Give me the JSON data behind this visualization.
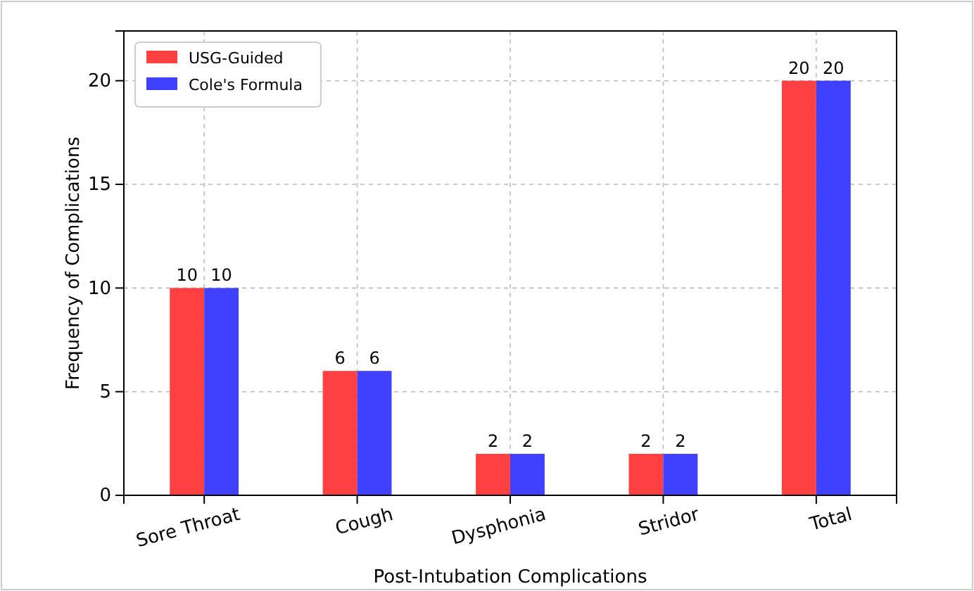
{
  "chart_data": {
    "type": "bar",
    "xlabel": "Post-Intubation Complications",
    "ylabel": "Frequency of Complications",
    "categories": [
      "Sore Throat",
      "Cough",
      "Dysphonia",
      "Stridor",
      "Total"
    ],
    "series": [
      {
        "name": "USG-Guided",
        "color": "#ff4040",
        "values": [
          10,
          6,
          2,
          2,
          20
        ]
      },
      {
        "name": "Cole's Formula",
        "color": "#4040ff",
        "values": [
          10,
          6,
          2,
          2,
          20
        ]
      }
    ],
    "ylim": [
      0,
      22.4
    ],
    "yticks": [
      0,
      5,
      10,
      15,
      20
    ],
    "grid": true,
    "legend": "top left",
    "data_labels": true
  }
}
